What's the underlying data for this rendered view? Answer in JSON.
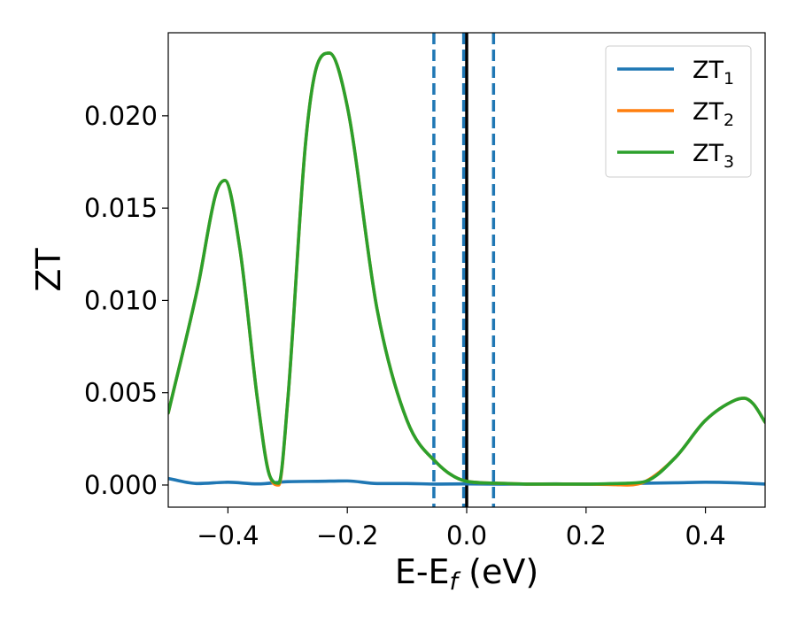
{
  "chart_data": {
    "type": "line",
    "xlabel": "E-E",
    "xlabel_sub": "f",
    "xlabel_unit": " (eV)",
    "ylabel": "ZT",
    "xlim": [
      -0.5,
      0.5
    ],
    "ylim": [
      -0.0012,
      0.0245
    ],
    "xticks": [
      -0.4,
      -0.2,
      0.0,
      0.2,
      0.4
    ],
    "xtick_labels": [
      "−0.4",
      "−0.2",
      "0.0",
      "0.2",
      "0.4"
    ],
    "yticks": [
      0.0,
      0.005,
      0.01,
      0.015,
      0.02
    ],
    "ytick_labels": [
      "0.000",
      "0.005",
      "0.010",
      "0.015",
      "0.020"
    ],
    "grid": false,
    "legend_position": "top-right",
    "series": [
      {
        "name": "ZT1",
        "label_main": "ZT",
        "label_sub": "1",
        "color": "#1f77b4",
        "x": [
          -0.5,
          -0.45,
          -0.4,
          -0.35,
          -0.3,
          -0.25,
          -0.2,
          -0.15,
          -0.1,
          -0.05,
          0.0,
          0.05,
          0.1,
          0.15,
          0.2,
          0.25,
          0.3,
          0.35,
          0.4,
          0.45,
          0.5
        ],
        "y": [
          0.00035,
          8e-05,
          0.00015,
          6e-05,
          0.00018,
          0.0002,
          0.00022,
          8e-05,
          8e-05,
          5e-05,
          6e-05,
          5e-05,
          5e-05,
          6e-05,
          5e-05,
          7e-05,
          0.0001,
          0.00012,
          0.00015,
          0.00012,
          5e-05
        ]
      },
      {
        "name": "ZT2",
        "label_main": "ZT",
        "label_sub": "2",
        "color": "#ff7f0e",
        "x": [
          -0.5,
          -0.45,
          -0.42,
          -0.405,
          -0.38,
          -0.35,
          -0.33,
          -0.315,
          -0.3,
          -0.27,
          -0.25,
          -0.23,
          -0.2,
          -0.15,
          -0.1,
          -0.05,
          0.0,
          0.05,
          0.1,
          0.2,
          0.25,
          0.27,
          0.3,
          0.35,
          0.4,
          0.45,
          0.465,
          0.48,
          0.5
        ],
        "y": [
          0.0039,
          0.0108,
          0.0158,
          0.0165,
          0.0128,
          0.0045,
          0.0005,
          0.0,
          0.0045,
          0.0185,
          0.0228,
          0.0234,
          0.0205,
          0.0095,
          0.0035,
          0.0012,
          0.0002,
          0.0001,
          5e-05,
          5e-05,
          2e-05,
          0.0,
          0.0002,
          0.0015,
          0.0035,
          0.0046,
          0.0047,
          0.0044,
          0.0034
        ]
      },
      {
        "name": "ZT3",
        "label_main": "ZT",
        "label_sub": "3",
        "color": "#2ca02c",
        "x": [
          -0.5,
          -0.45,
          -0.42,
          -0.405,
          -0.38,
          -0.35,
          -0.33,
          -0.315,
          -0.3,
          -0.27,
          -0.25,
          -0.23,
          -0.2,
          -0.15,
          -0.1,
          -0.05,
          0.0,
          0.05,
          0.1,
          0.2,
          0.25,
          0.27,
          0.3,
          0.35,
          0.4,
          0.45,
          0.465,
          0.48,
          0.5
        ],
        "y": [
          0.0039,
          0.0108,
          0.0158,
          0.0165,
          0.0128,
          0.0045,
          0.0005,
          0.0001,
          0.0045,
          0.0185,
          0.0228,
          0.0234,
          0.0205,
          0.0095,
          0.0035,
          0.0012,
          0.0002,
          0.0001,
          5e-05,
          5e-05,
          8e-05,
          0.0001,
          0.0002,
          0.0015,
          0.0035,
          0.0046,
          0.0047,
          0.0044,
          0.0034
        ]
      }
    ],
    "vlines": [
      {
        "x": -0.055,
        "style": "dashed",
        "color": "#1f77b4"
      },
      {
        "x": -0.005,
        "style": "dashed",
        "color": "#1f77b4"
      },
      {
        "x": 0.045,
        "style": "dashed",
        "color": "#1f77b4"
      },
      {
        "x": 0.0,
        "style": "solid",
        "color": "#000000"
      }
    ]
  }
}
